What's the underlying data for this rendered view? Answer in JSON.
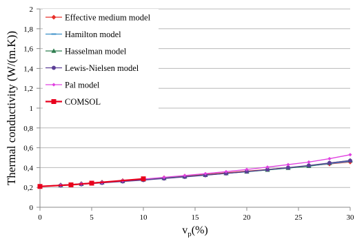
{
  "chart_data": {
    "type": "line",
    "title": "",
    "xlabel_main": "v",
    "xlabel_sub": "p",
    "xlabel_unit": "(%)",
    "ylabel": "Thermal conductivity (W/(m.K))",
    "xlim": [
      0,
      30
    ],
    "ylim": [
      0,
      2
    ],
    "x_ticks": [
      0,
      5,
      10,
      15,
      20,
      25,
      30
    ],
    "y_ticks": [
      "0",
      "0,2",
      "0,4",
      "0,6",
      "0,8",
      "1",
      "1,2",
      "1,4",
      "1,6",
      "1,8",
      "2"
    ],
    "y_tick_values": [
      0,
      0.2,
      0.4,
      0.6,
      0.8,
      1.0,
      1.2,
      1.4,
      1.6,
      1.8,
      2.0
    ],
    "grid": true,
    "legend_position": "top-left",
    "series": [
      {
        "name": "Effective medium model",
        "color": "#e8302a",
        "marker": "diamond",
        "x": [
          0,
          2,
          4,
          6,
          8,
          10,
          12,
          14,
          16,
          18,
          20,
          22,
          24,
          26,
          28,
          30
        ],
        "y": [
          0.21,
          0.224,
          0.238,
          0.253,
          0.268,
          0.283,
          0.298,
          0.314,
          0.33,
          0.347,
          0.364,
          0.381,
          0.399,
          0.418,
          0.437,
          0.457
        ]
      },
      {
        "name": "Hamilton model",
        "color": "#3a8fc8",
        "marker": "dash",
        "x": [
          0,
          2,
          4,
          6,
          8,
          10,
          12,
          14,
          16,
          18,
          20,
          22,
          24,
          26,
          28,
          30
        ],
        "y": [
          0.21,
          0.223,
          0.236,
          0.25,
          0.264,
          0.279,
          0.294,
          0.309,
          0.325,
          0.341,
          0.358,
          0.376,
          0.395,
          0.414,
          0.44,
          0.462
        ]
      },
      {
        "name": "Hasselman model",
        "color": "#2e7d4f",
        "marker": "triangle",
        "x": [
          0,
          2,
          4,
          6,
          8,
          10,
          12,
          14,
          16,
          18,
          20,
          22,
          24,
          26,
          28,
          30
        ],
        "y": [
          0.21,
          0.223,
          0.236,
          0.25,
          0.264,
          0.279,
          0.294,
          0.309,
          0.325,
          0.342,
          0.359,
          0.377,
          0.396,
          0.415,
          0.446,
          0.472
        ]
      },
      {
        "name": "Lewis-Nielsen model",
        "color": "#5b3e96",
        "marker": "circle",
        "x": [
          0,
          2,
          4,
          6,
          8,
          10,
          12,
          14,
          16,
          18,
          20,
          22,
          24,
          26,
          28,
          30
        ],
        "y": [
          0.21,
          0.22,
          0.232,
          0.246,
          0.26,
          0.274,
          0.29,
          0.306,
          0.323,
          0.341,
          0.36,
          0.38,
          0.4,
          0.422,
          0.447,
          0.47
        ]
      },
      {
        "name": "Pal model",
        "color": "#e040e0",
        "marker": "small-diamond",
        "x": [
          0,
          2,
          4,
          6,
          8,
          10,
          12,
          14,
          16,
          18,
          20,
          22,
          24,
          26,
          28,
          30
        ],
        "y": [
          0.21,
          0.222,
          0.236,
          0.251,
          0.268,
          0.284,
          0.302,
          0.32,
          0.339,
          0.359,
          0.381,
          0.405,
          0.43,
          0.456,
          0.49,
          0.53
        ]
      },
      {
        "name": "COMSOL",
        "color": "#e8001c",
        "marker": "square",
        "x": [
          0,
          3,
          5,
          10
        ],
        "y": [
          0.21,
          0.226,
          0.243,
          0.287
        ]
      }
    ]
  }
}
